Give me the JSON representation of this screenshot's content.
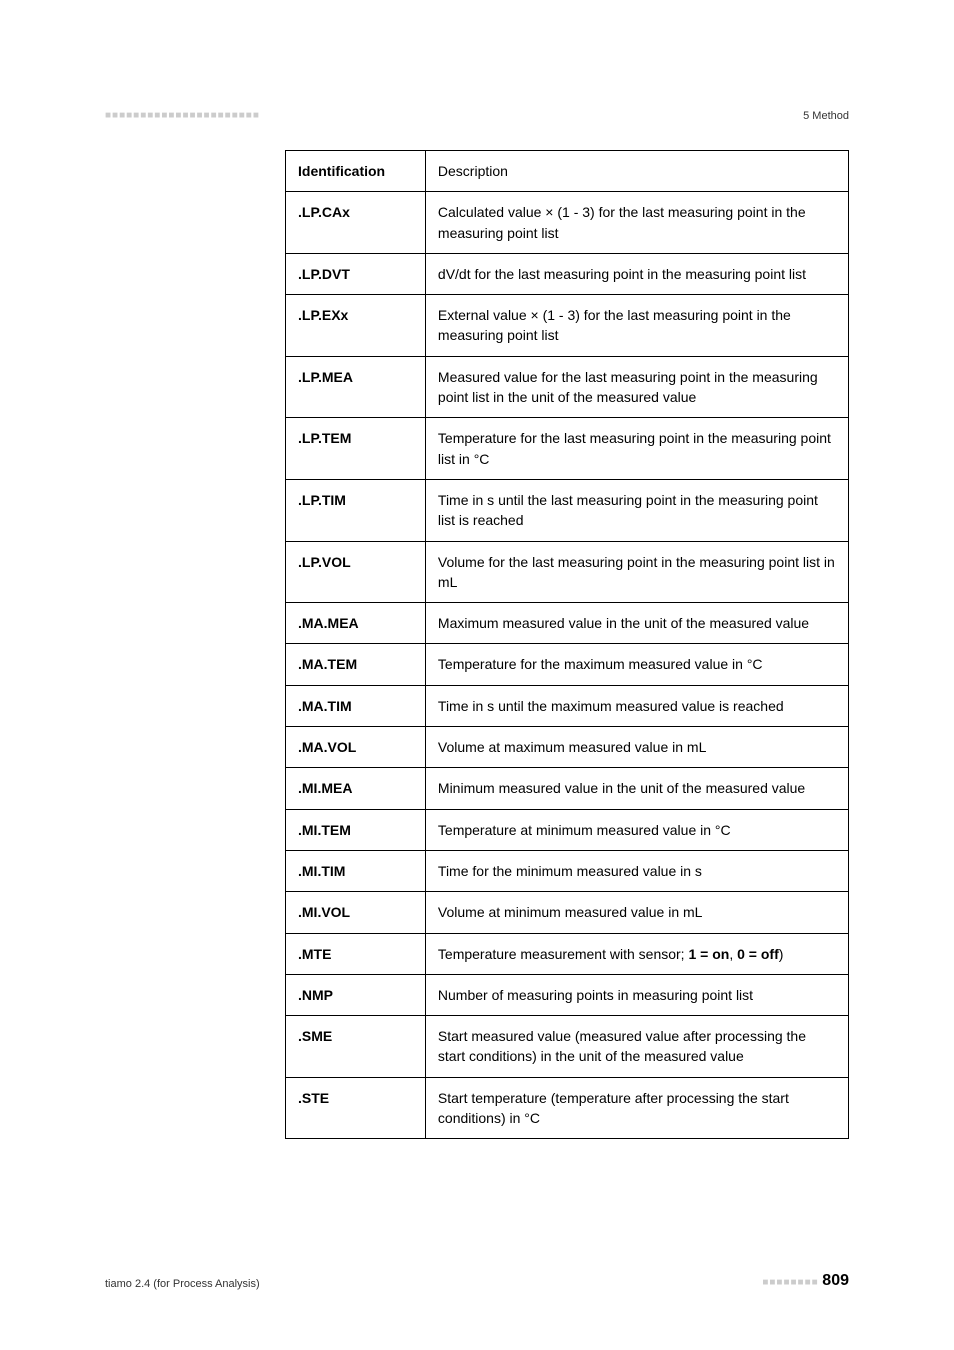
{
  "header": {
    "marks": "■■■■■■■■■■■■■■■■■■■■■■",
    "right": "5 Method"
  },
  "table": {
    "header": {
      "id": "Identification",
      "desc": "Description"
    },
    "rows": [
      {
        "id": ".LP.CAx",
        "desc": "Calculated value × (1 - 3) for the last measuring point in the measuring point list"
      },
      {
        "id": ".LP.DVT",
        "desc": "dV/dt for the last measuring point in the measuring point list"
      },
      {
        "id": ".LP.EXx",
        "desc": "External value × (1 - 3) for the last measuring point in the measuring point list"
      },
      {
        "id": ".LP.MEA",
        "desc": "Measured value for the last measuring point in the measuring point list in the unit of the measured value"
      },
      {
        "id": ".LP.TEM",
        "desc": "Temperature for the last measuring point in the measuring point list in °C"
      },
      {
        "id": ".LP.TIM",
        "desc": "Time in s until the last measuring point in the measuring point list is reached"
      },
      {
        "id": ".LP.VOL",
        "desc": "Volume for the last measuring point in the measuring point list in mL"
      },
      {
        "id": ".MA.MEA",
        "desc": "Maximum measured value in the unit of the measured value"
      },
      {
        "id": ".MA.TEM",
        "desc": "Temperature for the maximum measured value in °C"
      },
      {
        "id": ".MA.TIM",
        "desc": "Time in s until the maximum measured value is reached"
      },
      {
        "id": ".MA.VOL",
        "desc": "Volume at maximum measured value in mL"
      },
      {
        "id": ".MI.MEA",
        "desc": "Minimum measured value in the unit of the measured value"
      },
      {
        "id": ".MI.TEM",
        "desc": "Temperature at minimum measured value in °C"
      },
      {
        "id": ".MI.TIM",
        "desc": "Time for the minimum measured value in s"
      },
      {
        "id": ".MI.VOL",
        "desc": "Volume at minimum measured value in mL"
      },
      {
        "id": ".MTE",
        "desc_pre": "Temperature measurement with sensor; ",
        "bold1": "1 = on",
        "sep": ", ",
        "bold2": "0 = off",
        "suffix": ")"
      },
      {
        "id": ".NMP",
        "desc": "Number of measuring points in measuring point list"
      },
      {
        "id": ".SME",
        "desc": "Start measured value (measured value after processing the start conditions) in the unit of the measured value"
      },
      {
        "id": ".STE",
        "desc": "Start temperature (temperature after processing the start conditions) in °C"
      }
    ]
  },
  "footer": {
    "left": "tiamo 2.4 (for Process Analysis)",
    "marks": "■■■■■■■■",
    "page": "809"
  }
}
